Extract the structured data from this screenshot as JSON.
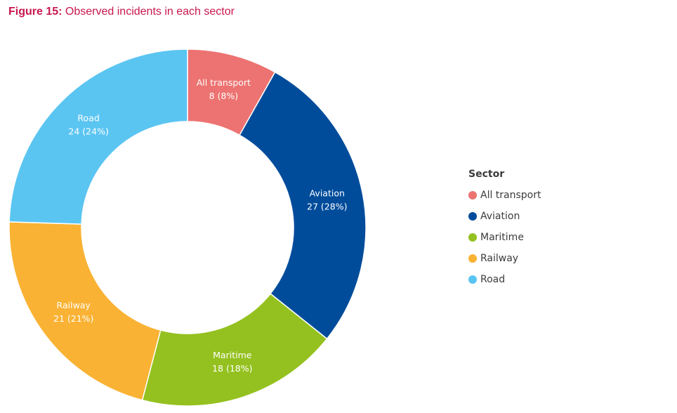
{
  "figure": {
    "number_label": "Figure 15:",
    "title": "Observed incidents in each sector"
  },
  "legend": {
    "title": "Sector"
  },
  "chart_data": {
    "type": "pie",
    "variant": "donut",
    "title": "Observed incidents in each sector",
    "legend_title": "Sector",
    "legend_position": "right",
    "slices": [
      {
        "label": "All transport",
        "value": 8,
        "percent_label": "8 (8%)",
        "color": "#ec7371"
      },
      {
        "label": "Aviation",
        "value": 27,
        "percent_label": "27 (28%)",
        "color": "#004c9b"
      },
      {
        "label": "Maritime",
        "value": 18,
        "percent_label": "18 (18%)",
        "color": "#94c11f"
      },
      {
        "label": "Railway",
        "value": 21,
        "percent_label": "21 (21%)",
        "color": "#f9b233"
      },
      {
        "label": "Road",
        "value": 24,
        "percent_label": "24 (24%)",
        "color": "#5bc5f2"
      }
    ]
  }
}
